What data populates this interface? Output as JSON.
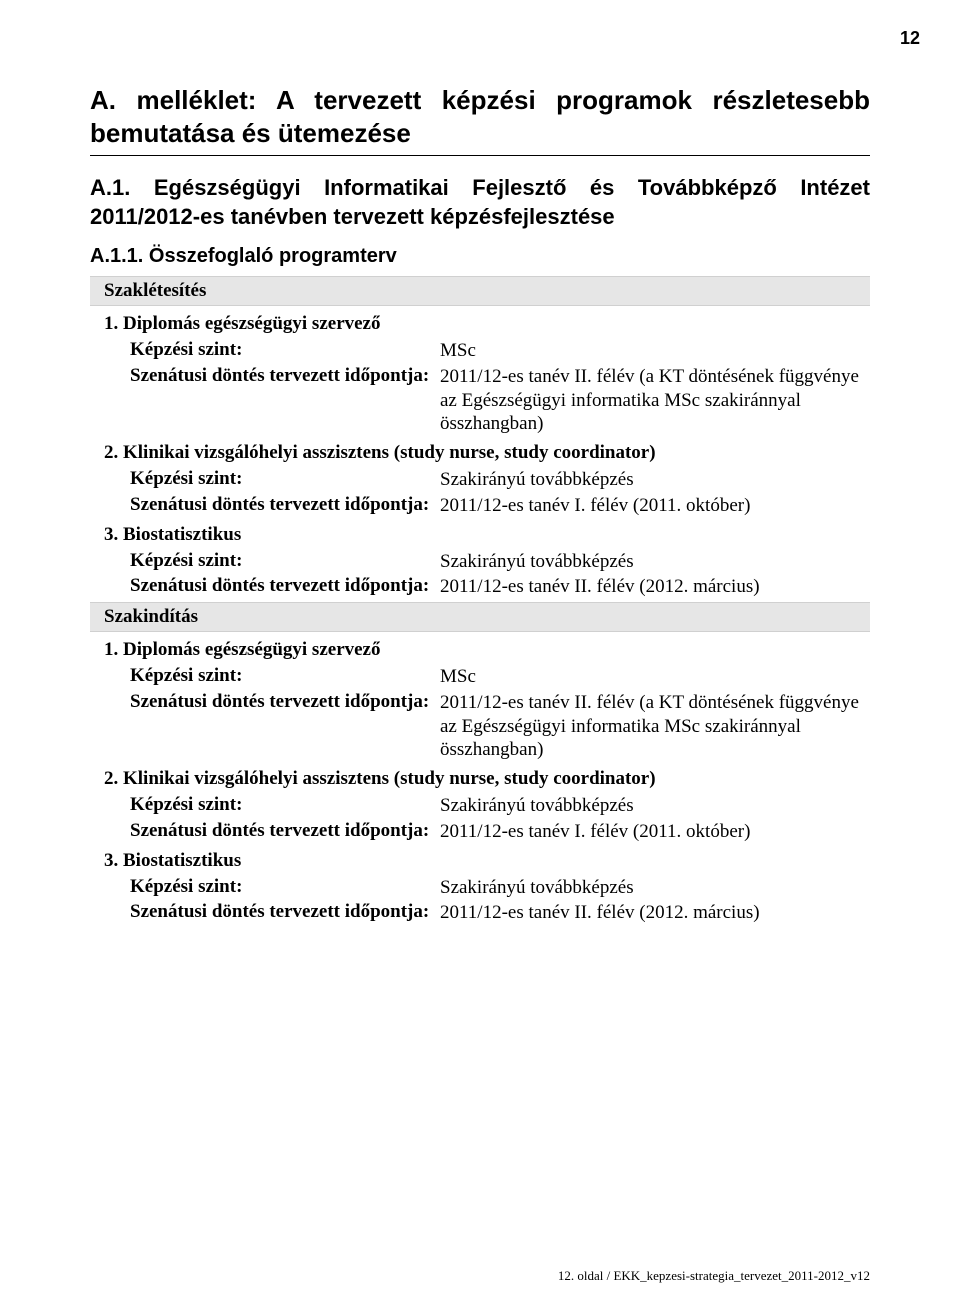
{
  "page_number_top": "12",
  "heading_main": "A. melléklet: A tervezett képzési programok részlete­sebb bemutatása és ütemezése",
  "heading_sub": "A.1. Egészségügyi Informatikai Fejlesztő és Továbbképző Intézet 2011/2012-es tanévben tervezett képzésfejlesztése",
  "heading_subsub": "A.1.1. Összefoglaló programterv",
  "label_kepzesi_szint": "Képzési szint:",
  "label_szenatusi": "Szenátusi döntés tervezett időpontja:",
  "group1": {
    "header": "Szaklétesítés",
    "items": [
      {
        "title": "1. Diplomás egészségügyi szervező",
        "level": "MSc",
        "timing": "2011/12-es tanév II. félév (a KT döntésének függvénye az Egészségügyi informatika MSc szakiránnyal összhangban)"
      },
      {
        "title": "2. Klinikai vizsgálóhelyi asszisztens (study nurse, study coordinator)",
        "level": "Szakirányú továbbképzés",
        "timing": "2011/12-es tanév I. félév (2011. október)"
      },
      {
        "title": "3. Biostatisztikus",
        "level": "Szakirányú továbbképzés",
        "timing": "2011/12-es tanév II. félév (2012. március)"
      }
    ]
  },
  "group2": {
    "header": "Szakindítás",
    "items": [
      {
        "title": "1. Diplomás egészségügyi szervező",
        "level": "MSc",
        "timing": "2011/12-es tanév II. félév (a KT döntésének függvénye az Egészségügyi informatika MSc szakiránnyal összhangban)"
      },
      {
        "title": "2. Klinikai vizsgálóhelyi asszisztens (study nurse, study coordinator)",
        "level": "Szakirányú továbbképzés",
        "timing": "2011/12-es tanév I. félév (2011. október)"
      },
      {
        "title": "3. Biostatisztikus",
        "level": "Szakirányú továbbképzés",
        "timing": "2011/12-es tanév II. félév (2012. március)"
      }
    ]
  },
  "footer": "12. oldal / EKK_kepzesi-strategia_tervezet_2011-2012_v12"
}
